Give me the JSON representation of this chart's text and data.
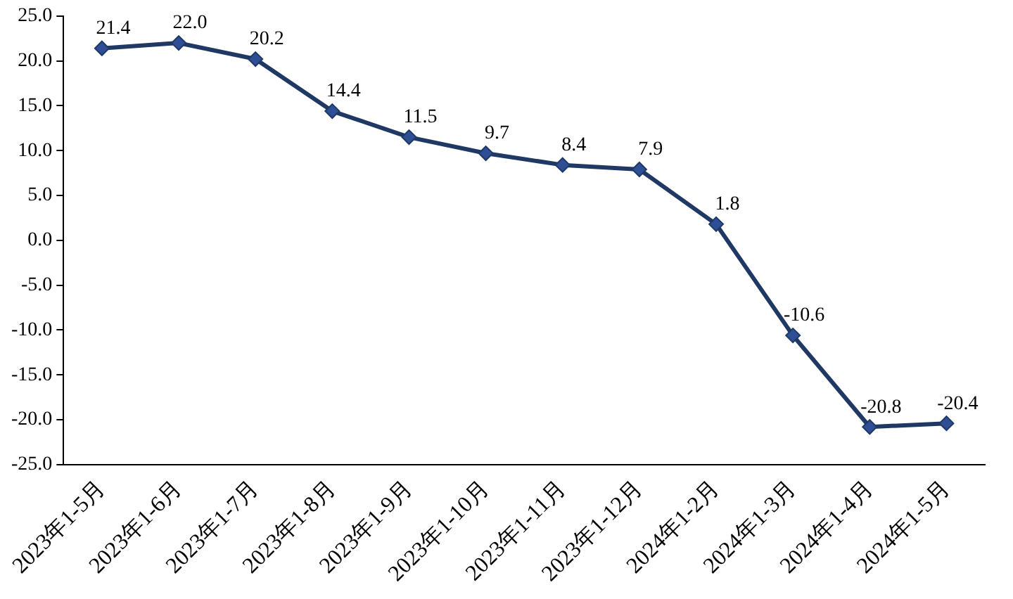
{
  "chart_data": {
    "type": "line",
    "categories": [
      "2023年1-5月",
      "2023年1-6月",
      "2023年1-7月",
      "2023年1-8月",
      "2023年1-9月",
      "2023年1-10月",
      "2023年1-11月",
      "2023年1-12月",
      "2024年1-2月",
      "2024年1-3月",
      "2024年1-4月",
      "2024年1-5月"
    ],
    "series": [
      {
        "color": "#1f3864",
        "values": [
          21.4,
          22.0,
          20.2,
          14.4,
          11.5,
          9.7,
          8.4,
          7.9,
          1.8,
          -10.6,
          -20.8,
          -20.4
        ],
        "value_labels": [
          "21.4",
          "22.0",
          "20.2",
          "14.4",
          "11.5",
          "9.7",
          "8.4",
          "7.9",
          "1.8",
          "-10.6",
          "-20.8",
          "-20.4"
        ]
      }
    ],
    "ylim": [
      -25,
      25
    ],
    "yticks": [
      {
        "value": -25,
        "label": "-25.0"
      },
      {
        "value": -20,
        "label": "-20.0"
      },
      {
        "value": -15,
        "label": "-15.0"
      },
      {
        "value": -10,
        "label": "-10.0"
      },
      {
        "value": -5,
        "label": "-5.0"
      },
      {
        "value": 0,
        "label": "0.0"
      },
      {
        "value": 5,
        "label": "5.0"
      },
      {
        "value": 10,
        "label": "10.0"
      },
      {
        "value": 15,
        "label": "15.0"
      },
      {
        "value": 20,
        "label": "20.0"
      },
      {
        "value": 25,
        "label": "25.0"
      }
    ],
    "grid": false,
    "legend": false,
    "marker": "diamond",
    "line_style": "solid"
  }
}
